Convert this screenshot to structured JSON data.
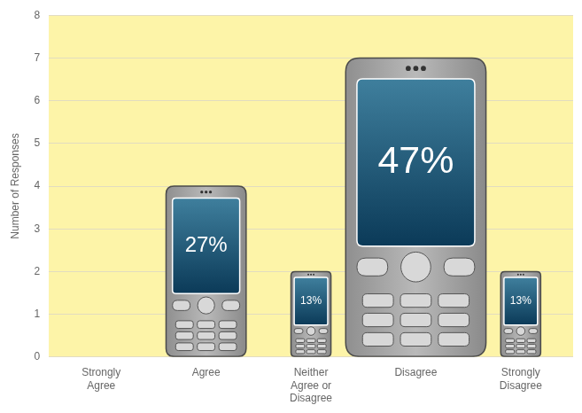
{
  "chart_data": {
    "type": "bar",
    "y_label": "Number of Responses",
    "categories": [
      "Strongly Agree",
      "Agree",
      "Neither Agree or Disagree",
      "Disagree",
      "Strongly Disagree"
    ],
    "values": [
      0,
      4,
      2,
      7,
      2
    ],
    "color": "#b9b9b9",
    "ylim": [
      0,
      8
    ],
    "yticks": [
      0,
      1,
      2,
      3,
      4,
      5,
      6,
      7,
      8
    ],
    "grid": true,
    "annotations": [
      {
        "x": "Agree",
        "text": "27%"
      },
      {
        "x": "Neither Agree or Disagree",
        "text": "13%"
      },
      {
        "x": "Disagree",
        "text": "47%"
      },
      {
        "x": "Strongly Disagree",
        "text": "13%"
      }
    ]
  }
}
